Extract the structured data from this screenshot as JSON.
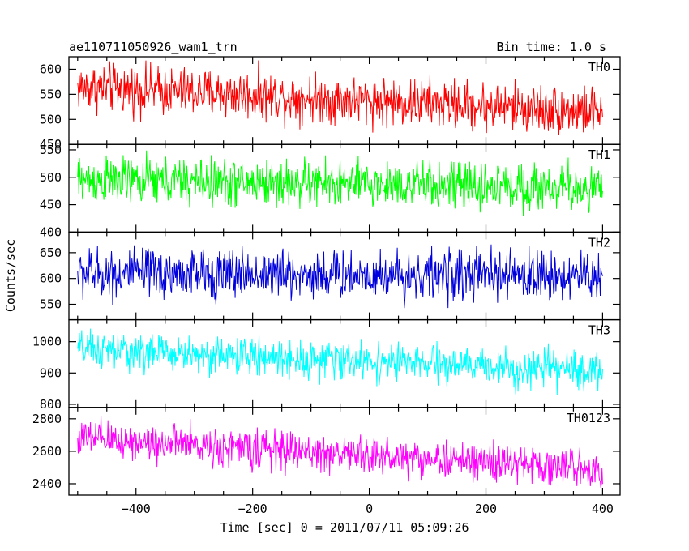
{
  "header": {
    "title": "ae110711050926_wam1_trn",
    "bin_time": "Bin time: 1.0 s"
  },
  "axes": {
    "xlabel": "Time [sec] 0 = 2011/07/11 05:09:26",
    "ylabel": "Counts/sec"
  },
  "chart_data": {
    "type": "line",
    "xlim": [
      -515,
      430
    ],
    "x_ticks": [
      -400,
      -200,
      0,
      200,
      400
    ],
    "x_tick_labels": [
      "−400",
      "−200",
      "0",
      "200",
      "400"
    ],
    "x_range": [
      -500,
      400
    ],
    "series": [
      {
        "name": "TH0",
        "color": "#ff0000",
        "ylim": [
          450,
          625
        ],
        "y_ticks": [
          450,
          500,
          550,
          600
        ],
        "y_tick_labels": [
          "450",
          "500",
          "550",
          "600"
        ],
        "level_start": 565,
        "level_end": 515,
        "noise_amplitude": 45
      },
      {
        "name": "TH1",
        "color": "#00ff00",
        "ylim": [
          400,
          560
        ],
        "y_ticks": [
          400,
          450,
          500,
          550
        ],
        "y_tick_labels": [
          "400",
          "450",
          "500",
          "550"
        ],
        "level_start": 495,
        "level_end": 480,
        "noise_amplitude": 40
      },
      {
        "name": "TH2",
        "color": "#0000dd",
        "ylim": [
          520,
          690
        ],
        "y_ticks": [
          550,
          600,
          650
        ],
        "y_tick_labels": [
          "550",
          "600",
          "650"
        ],
        "level_start": 610,
        "level_end": 605,
        "noise_amplitude": 45
      },
      {
        "name": "TH3",
        "color": "#00ffff",
        "ylim": [
          790,
          1070
        ],
        "y_ticks": [
          800,
          900,
          1000
        ],
        "y_tick_labels": [
          "800",
          "900",
          "1000"
        ],
        "level_start": 975,
        "level_end": 905,
        "noise_amplitude": 55
      },
      {
        "name": "TH0123",
        "color": "#ff00ff",
        "ylim": [
          2330,
          2870
        ],
        "y_ticks": [
          2400,
          2600,
          2800
        ],
        "y_tick_labels": [
          "2400",
          "2600",
          "2800"
        ],
        "level_start": 2680,
        "level_end": 2490,
        "noise_amplitude": 110
      }
    ]
  }
}
